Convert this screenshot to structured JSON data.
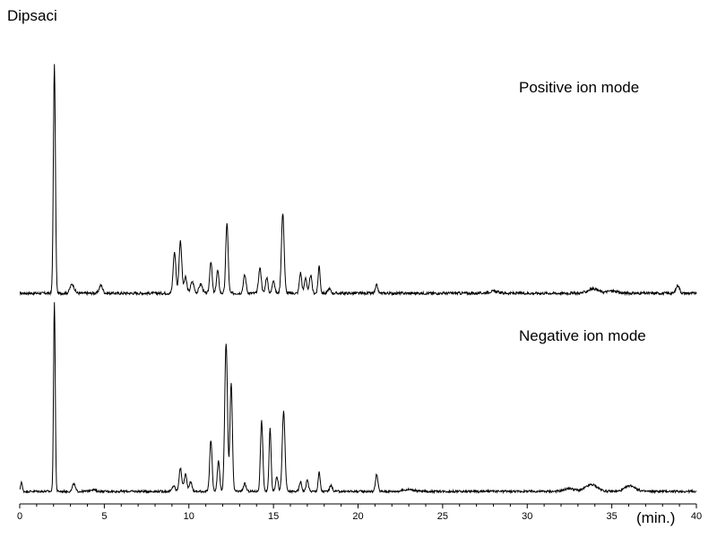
{
  "chart_data": {
    "type": "line",
    "title": "Dipsaci",
    "xlabel": "(min.)",
    "ylabel": "",
    "xlim": [
      0,
      40
    ],
    "x_ticks": [
      0,
      5,
      10,
      15,
      20,
      25,
      30,
      35,
      40
    ],
    "grid": false,
    "legend": "none",
    "line_color": "#000000",
    "series": [
      {
        "name": "Positive ion mode",
        "baseline": 0,
        "peaks": [
          [
            2.05,
            1.0,
            0.06
          ],
          [
            3.1,
            0.04,
            0.12
          ],
          [
            4.8,
            0.035,
            0.1
          ],
          [
            9.15,
            0.18,
            0.08
          ],
          [
            9.5,
            0.23,
            0.08
          ],
          [
            9.8,
            0.07,
            0.08
          ],
          [
            10.2,
            0.05,
            0.1
          ],
          [
            10.7,
            0.04,
            0.1
          ],
          [
            11.3,
            0.14,
            0.07
          ],
          [
            11.7,
            0.1,
            0.07
          ],
          [
            12.25,
            0.31,
            0.07
          ],
          [
            13.3,
            0.08,
            0.08
          ],
          [
            14.2,
            0.11,
            0.08
          ],
          [
            14.6,
            0.07,
            0.07
          ],
          [
            15.0,
            0.06,
            0.07
          ],
          [
            15.55,
            0.35,
            0.08
          ],
          [
            16.6,
            0.09,
            0.07
          ],
          [
            16.9,
            0.07,
            0.07
          ],
          [
            17.2,
            0.08,
            0.07
          ],
          [
            17.7,
            0.12,
            0.06
          ],
          [
            18.3,
            0.02,
            0.08
          ],
          [
            21.1,
            0.035,
            0.07
          ],
          [
            28.0,
            0.008,
            0.3
          ],
          [
            33.9,
            0.02,
            0.3
          ],
          [
            35.0,
            0.01,
            0.3
          ],
          [
            38.9,
            0.035,
            0.1
          ]
        ]
      },
      {
        "name": "Negative ion mode",
        "baseline": 0,
        "peaks": [
          [
            0.1,
            0.05,
            0.05
          ],
          [
            2.05,
            1.0,
            0.05
          ],
          [
            3.2,
            0.04,
            0.08
          ],
          [
            4.3,
            0.01,
            0.15
          ],
          [
            9.1,
            0.03,
            0.08
          ],
          [
            9.5,
            0.12,
            0.08
          ],
          [
            9.8,
            0.09,
            0.08
          ],
          [
            10.1,
            0.05,
            0.08
          ],
          [
            11.3,
            0.27,
            0.07
          ],
          [
            11.75,
            0.16,
            0.07
          ],
          [
            12.2,
            0.78,
            0.08
          ],
          [
            12.5,
            0.57,
            0.07
          ],
          [
            13.3,
            0.04,
            0.08
          ],
          [
            14.3,
            0.37,
            0.07
          ],
          [
            14.8,
            0.33,
            0.06
          ],
          [
            15.2,
            0.08,
            0.07
          ],
          [
            15.6,
            0.42,
            0.08
          ],
          [
            16.6,
            0.05,
            0.07
          ],
          [
            17.0,
            0.06,
            0.07
          ],
          [
            17.7,
            0.1,
            0.06
          ],
          [
            18.4,
            0.03,
            0.08
          ],
          [
            21.1,
            0.09,
            0.07
          ],
          [
            23.0,
            0.01,
            0.3
          ],
          [
            32.5,
            0.015,
            0.3
          ],
          [
            33.8,
            0.035,
            0.35
          ],
          [
            36.1,
            0.03,
            0.3
          ]
        ]
      }
    ]
  }
}
